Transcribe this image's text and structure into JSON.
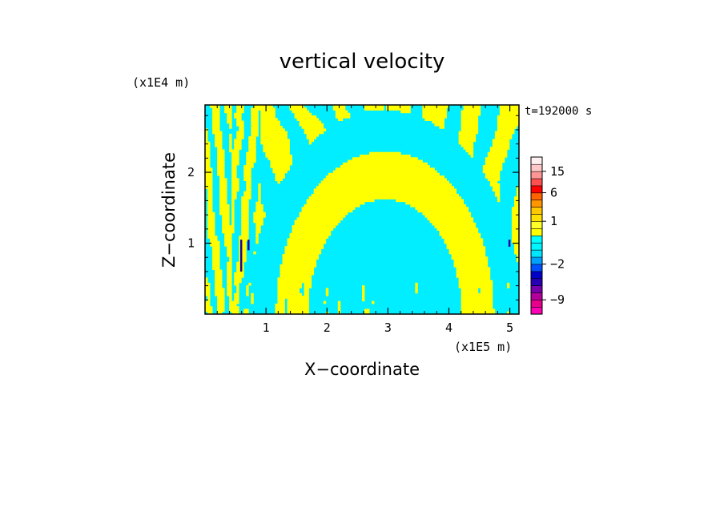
{
  "chart_data": {
    "type": "heatmap",
    "title": "vertical velocity",
    "xlabel": "X−coordinate",
    "ylabel": "Z−coordinate",
    "x_unit": "(x1E5 m)",
    "y_unit": "(x1E4 m)",
    "time_label": "t=192000 s",
    "xlim": [
      0,
      5.15
    ],
    "ylim": [
      0,
      2.95
    ],
    "x_ticks": [
      1,
      2,
      3,
      4,
      5
    ],
    "y_ticks": [
      1,
      2
    ],
    "grid": false,
    "colorbar": {
      "levels": [
        -12,
        -10.5,
        -9,
        -7.5,
        -6,
        -4.5,
        -3,
        -2,
        -1.5,
        -1,
        -0.5,
        0,
        0.5,
        1,
        1.5,
        2,
        3,
        6,
        9,
        12,
        15,
        18,
        24
      ],
      "colors": [
        "#ff00b4",
        "#e6008c",
        "#b4009b",
        "#7800aa",
        "#2800b4",
        "#0000c8",
        "#0050ff",
        "#00a0ff",
        "#00e6ff",
        "#00f5ff",
        "#00ffff",
        "#ffff00",
        "#ffff28",
        "#ffe000",
        "#ffc800",
        "#ff9600",
        "#ff6400",
        "#ff0000",
        "#ff5050",
        "#ff9696",
        "#ffc8c8",
        "#fff0f0"
      ],
      "tick_labels": [
        {
          "value": -9,
          "label": "−9"
        },
        {
          "value": -2,
          "label": "−2"
        },
        {
          "value": 1,
          "label": "1"
        },
        {
          "value": 6,
          "label": "6"
        },
        {
          "value": 15,
          "label": "15"
        }
      ]
    },
    "field_colors": {
      "positive": "#ffff00",
      "negative": "#00eeff",
      "strong_negative": "#2000a0"
    }
  }
}
